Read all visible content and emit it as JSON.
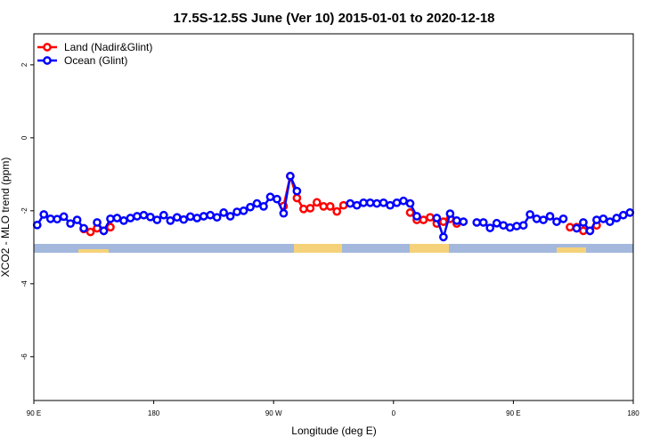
{
  "chart_data": {
    "type": "line",
    "title": "17.5S-12.5S June (Ver 10)   2015-01-01 to 2020-12-18",
    "xlabel": "Longitude (deg E)",
    "ylabel": "XCO2 - MLO trend (ppm)",
    "xlim": [
      90,
      540
    ],
    "ylim": [
      -7.2,
      2.85
    ],
    "xticks": [
      {
        "value": 90,
        "label": "90 E"
      },
      180,
      {
        "value": 270,
        "label": "90 W"
      },
      {
        "value": 360,
        "label": "0"
      },
      {
        "value": 450,
        "label": "90 E"
      },
      {
        "value": 540,
        "label": "180"
      }
    ],
    "yticks": [
      -6,
      -4,
      -2,
      0,
      2
    ],
    "legend": "top-left",
    "x": [
      92.5,
      97.5,
      102.5,
      107.5,
      112.5,
      117.5,
      122.5,
      127.5,
      132.5,
      137.5,
      142.5,
      147.5,
      152.5,
      157.5,
      162.5,
      167.5,
      172.5,
      177.5,
      182.5,
      187.5,
      192.5,
      197.5,
      202.5,
      207.5,
      212.5,
      217.5,
      222.5,
      227.5,
      232.5,
      237.5,
      242.5,
      247.5,
      252.5,
      257.5,
      262.5,
      267.5,
      272.5,
      277.5,
      282.5,
      287.5,
      292.5,
      297.5,
      302.5,
      307.5,
      312.5,
      317.5,
      322.5,
      327.5,
      332.5,
      337.5,
      342.5,
      347.5,
      352.5,
      357.5,
      362.5,
      367.5,
      372.5,
      377.5,
      382.5,
      387.5,
      392.5,
      397.5,
      402.5,
      407.5,
      412.5,
      417.5,
      422.5,
      427.5,
      432.5,
      437.5,
      442.5,
      447.5,
      452.5,
      457.5,
      462.5,
      467.5,
      472.5,
      477.5,
      482.5,
      487.5,
      492.5,
      497.5,
      502.5,
      507.5,
      512.5,
      517.5,
      522.5,
      527.5,
      532.5,
      537.5
    ],
    "series": [
      {
        "name": "Land (Nadir&Glint)",
        "color": "#ff0000",
        "values": [
          null,
          null,
          null,
          null,
          null,
          null,
          null,
          -2.5,
          -2.58,
          -2.48,
          -2.55,
          -2.45,
          null,
          null,
          null,
          null,
          null,
          null,
          null,
          null,
          null,
          null,
          null,
          null,
          null,
          null,
          null,
          null,
          null,
          null,
          null,
          null,
          null,
          null,
          null,
          null,
          null,
          -1.87,
          -1.05,
          -1.65,
          -1.95,
          -1.93,
          -1.77,
          -1.88,
          -1.88,
          -2.02,
          -1.85,
          null,
          null,
          null,
          null,
          null,
          null,
          null,
          null,
          null,
          -2.05,
          -2.25,
          -2.25,
          -2.18,
          -2.35,
          -2.3,
          -2.22,
          -2.35,
          null,
          null,
          null,
          null,
          null,
          null,
          null,
          null,
          null,
          null,
          null,
          null,
          null,
          null,
          null,
          null,
          -2.45,
          -2.45,
          -2.55,
          -2.55,
          -2.4,
          null,
          null,
          null,
          null,
          null
        ]
      },
      {
        "name": "Ocean (Glint)",
        "color": "#0000ff",
        "values": [
          -2.39,
          -2.1,
          -2.22,
          -2.23,
          -2.16,
          -2.35,
          -2.25,
          -2.48,
          null,
          -2.32,
          -2.55,
          -2.22,
          -2.2,
          -2.27,
          -2.2,
          -2.15,
          -2.12,
          -2.17,
          -2.25,
          -2.12,
          -2.27,
          -2.18,
          -2.24,
          -2.16,
          -2.2,
          -2.15,
          -2.12,
          -2.18,
          -2.05,
          -2.15,
          -2.03,
          -2.0,
          -1.9,
          -1.8,
          -1.88,
          -1.62,
          -1.68,
          -2.07,
          -1.05,
          -1.46,
          null,
          null,
          null,
          null,
          null,
          null,
          null,
          -1.8,
          -1.85,
          -1.78,
          -1.78,
          -1.8,
          -1.78,
          -1.85,
          -1.78,
          -1.73,
          -1.8,
          -2.15,
          null,
          null,
          -2.2,
          -2.72,
          -2.08,
          -2.27,
          -2.3,
          null,
          -2.32,
          -2.32,
          -2.47,
          -2.34,
          -2.4,
          -2.46,
          -2.42,
          -2.4,
          -2.1,
          -2.22,
          -2.25,
          -2.15,
          -2.3,
          -2.22,
          null,
          -2.48,
          -2.32,
          -2.55,
          -2.25,
          -2.22,
          -2.3,
          -2.2,
          -2.12,
          -2.05
        ]
      }
    ]
  }
}
